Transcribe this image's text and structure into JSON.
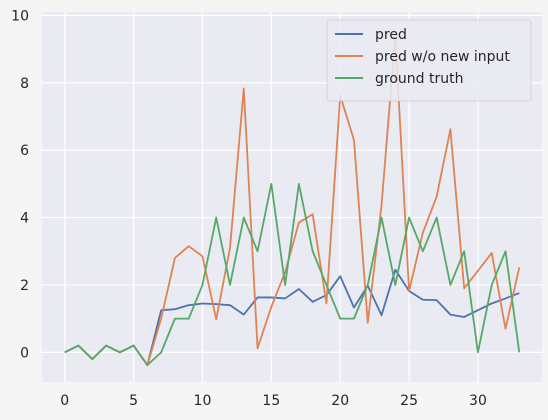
{
  "chart_data": {
    "type": "line",
    "title": "",
    "xlabel": "",
    "ylabel": "",
    "xlim": [
      -1.65,
      34.65
    ],
    "ylim": [
      -0.88,
      10.1
    ],
    "x_ticks": [
      0,
      5,
      10,
      15,
      20,
      25,
      30
    ],
    "y_ticks": [
      0,
      2,
      4,
      6,
      8,
      10
    ],
    "grid": true,
    "legend_position": "top-right",
    "background_color": "#eaeaf2",
    "x": [
      0,
      1,
      2,
      3,
      4,
      5,
      6,
      7,
      8,
      9,
      10,
      11,
      12,
      13,
      14,
      15,
      16,
      17,
      18,
      19,
      20,
      21,
      22,
      23,
      24,
      25,
      26,
      27,
      28,
      29,
      30,
      31,
      32,
      33
    ],
    "series": [
      {
        "name": "pred",
        "color": "#4c72b0",
        "values": [
          0,
          0.2,
          -0.2,
          0.2,
          0,
          0.2,
          -0.38,
          1.25,
          1.28,
          1.4,
          1.45,
          1.43,
          1.4,
          1.12,
          1.63,
          1.63,
          1.6,
          1.88,
          1.5,
          1.7,
          2.26,
          1.33,
          1.98,
          1.1,
          2.45,
          1.82,
          1.56,
          1.55,
          1.12,
          1.05,
          1.25,
          1.45,
          1.6,
          1.76
        ]
      },
      {
        "name": "pred w/o new input",
        "color": "#dd8452",
        "values": [
          0,
          0.2,
          -0.2,
          0.2,
          0,
          0.2,
          -0.38,
          1.0,
          2.8,
          3.15,
          2.85,
          0.98,
          3.1,
          7.83,
          0.12,
          1.35,
          2.38,
          3.85,
          4.1,
          1.45,
          7.62,
          6.3,
          0.88,
          4.36,
          9.4,
          1.82,
          3.55,
          4.62,
          6.62,
          1.9,
          2.42,
          2.95,
          0.7,
          2.52
        ]
      },
      {
        "name": "ground truth",
        "color": "#55a868",
        "values": [
          0,
          0.2,
          -0.2,
          0.2,
          0,
          0.2,
          -0.38,
          0,
          1.0,
          1.0,
          2.0,
          4.0,
          2.0,
          4.0,
          3.0,
          5.0,
          2.0,
          5.0,
          3.0,
          2.0,
          1.0,
          1.0,
          2.0,
          4.0,
          2.0,
          4.0,
          3.0,
          4.0,
          2.0,
          3.0,
          0,
          2.0,
          3.0,
          0
        ]
      }
    ]
  }
}
